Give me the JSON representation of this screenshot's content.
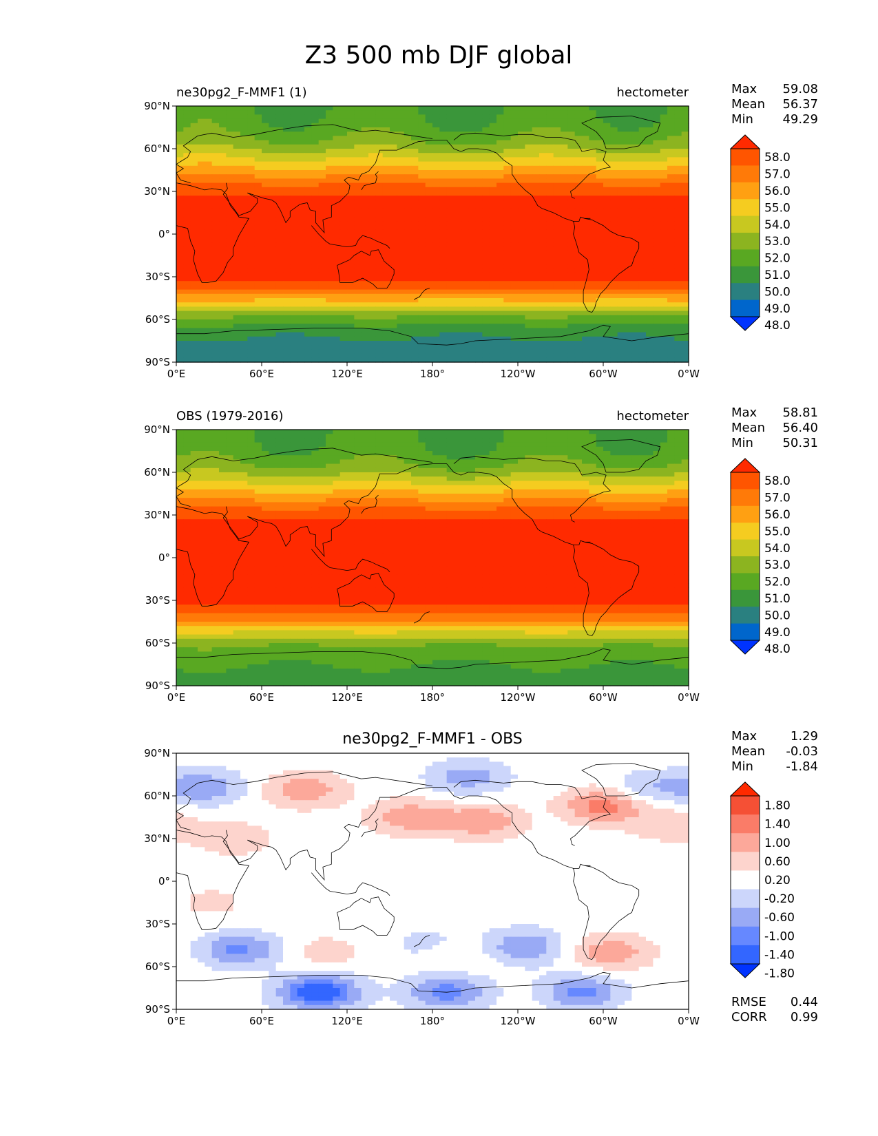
{
  "suptitle": "Z3 500 mb DJF global",
  "colors": {
    "abs_levels": [
      "#0033ff",
      "#0066cc",
      "#2a8080",
      "#3a963a",
      "#59a822",
      "#8cb420",
      "#c8c820",
      "#f5cc20",
      "#ffa012",
      "#ff7a08",
      "#ff5500",
      "#ff2a00"
    ],
    "diff_levels": [
      "#0033ff",
      "#3366ff",
      "#6688ff",
      "#99aaf5",
      "#ccd6fb",
      "#ffffff",
      "#fdd4cd",
      "#fca89a",
      "#fa7c68",
      "#f55035",
      "#ff2a00"
    ],
    "coastline": "#000000"
  },
  "chart_data": [
    {
      "type": "heatmap",
      "title_left": "ne30pg2_F-MMF1 (1)",
      "title_right": "hectometer",
      "stats": {
        "max_label": "Max",
        "max": "59.08",
        "mean_label": "Mean",
        "mean": "56.37",
        "min_label": "Min",
        "min": "49.29"
      },
      "colorbar_ticks": [
        "58.0",
        "57.0",
        "56.0",
        "55.0",
        "54.0",
        "53.0",
        "52.0",
        "51.0",
        "50.0",
        "49.0",
        "48.0"
      ],
      "xticks": [
        "0°E",
        "60°E",
        "120°E",
        "180°",
        "120°W",
        "60°W",
        "0°W"
      ],
      "yticks": [
        "90°N",
        "60°N",
        "30°N",
        "0°",
        "30°S",
        "60°S",
        "90°S"
      ],
      "xlim": [
        0,
        360
      ],
      "ylim": [
        -90,
        90
      ],
      "lat_profile": [
        [
          -90,
          49.3
        ],
        [
          -80,
          49.5
        ],
        [
          -70,
          50.2
        ],
        [
          -62,
          51.2
        ],
        [
          -55,
          52.6
        ],
        [
          -48,
          54.6
        ],
        [
          -42,
          56.3
        ],
        [
          -36,
          57.6
        ],
        [
          -30,
          58.2
        ],
        [
          -20,
          58.6
        ],
        [
          0,
          58.7
        ],
        [
          20,
          58.5
        ],
        [
          28,
          57.9
        ],
        [
          35,
          57.0
        ],
        [
          42,
          55.8
        ],
        [
          50,
          54.5
        ],
        [
          58,
          53.2
        ],
        [
          65,
          52.2
        ],
        [
          75,
          51.4
        ],
        [
          90,
          51.0
        ]
      ],
      "wave": [
        {
          "k": 1,
          "phase": 0,
          "amp": 0.2
        },
        {
          "k": 3,
          "phase": 0,
          "amp": 1.2
        }
      ]
    },
    {
      "type": "heatmap",
      "title_left": "OBS (1979-2016)",
      "title_right": "hectometer",
      "stats": {
        "max_label": "Max",
        "max": "58.81",
        "mean_label": "Mean",
        "mean": "56.40",
        "min_label": "Min",
        "min": "50.31"
      },
      "colorbar_ticks": [
        "58.0",
        "57.0",
        "56.0",
        "55.0",
        "54.0",
        "53.0",
        "52.0",
        "51.0",
        "50.0",
        "49.0",
        "48.0"
      ],
      "xticks": [
        "0°E",
        "60°E",
        "120°E",
        "180°",
        "120°W",
        "60°W",
        "0°W"
      ],
      "yticks": [
        "90°N",
        "60°N",
        "30°N",
        "0°",
        "30°S",
        "60°S",
        "90°S"
      ],
      "xlim": [
        0,
        360
      ],
      "ylim": [
        -90,
        90
      ],
      "lat_profile": [
        [
          -90,
          50.4
        ],
        [
          -80,
          50.8
        ],
        [
          -70,
          51.3
        ],
        [
          -62,
          52.0
        ],
        [
          -55,
          53.3
        ],
        [
          -48,
          55.0
        ],
        [
          -42,
          56.5
        ],
        [
          -36,
          57.7
        ],
        [
          -30,
          58.2
        ],
        [
          -20,
          58.6
        ],
        [
          0,
          58.7
        ],
        [
          20,
          58.5
        ],
        [
          28,
          57.9
        ],
        [
          35,
          57.0
        ],
        [
          42,
          55.8
        ],
        [
          50,
          54.4
        ],
        [
          58,
          53.0
        ],
        [
          65,
          52.0
        ],
        [
          75,
          51.3
        ],
        [
          90,
          51.0
        ]
      ],
      "wave": [
        {
          "k": 1,
          "phase": 0,
          "amp": 0.2
        },
        {
          "k": 3,
          "phase": 0,
          "amp": 1.2
        }
      ]
    },
    {
      "type": "heatmap",
      "title": "ne30pg2_F-MMF1 - OBS",
      "stats": {
        "max_label": "Max",
        "max": "1.29",
        "mean_label": "Mean",
        "mean": "-0.03",
        "min_label": "Min",
        "min": "-1.84"
      },
      "extra_stats": {
        "rmse_label": "RMSE",
        "rmse": "0.44",
        "corr_label": "CORR",
        "corr": "0.99"
      },
      "colorbar_ticks": [
        "1.80",
        "1.40",
        "1.00",
        "0.60",
        "0.20",
        "-0.20",
        "-0.60",
        "-1.00",
        "-1.40",
        "-1.80"
      ],
      "xticks": [
        "0°E",
        "60°E",
        "120°E",
        "180°",
        "120°W",
        "60°W",
        "0°W"
      ],
      "yticks": [
        "90°N",
        "60°N",
        "30°N",
        "0°",
        "30°S",
        "60°S",
        "90°S"
      ],
      "xlim": [
        0,
        360
      ],
      "ylim": [
        -90,
        90
      ],
      "blobs": [
        {
          "lon": 90,
          "lat": 64,
          "value": 0.9
        },
        {
          "lon": 165,
          "lat": 45,
          "value": 0.9
        },
        {
          "lon": 215,
          "lat": 42,
          "value": 0.9
        },
        {
          "lon": 300,
          "lat": 53,
          "value": 1.2
        },
        {
          "lon": 345,
          "lat": 40,
          "value": 0.5
        },
        {
          "lon": 40,
          "lat": 30,
          "value": 0.5
        },
        {
          "lon": 20,
          "lat": 66,
          "value": -0.9
        },
        {
          "lon": 205,
          "lat": 73,
          "value": -0.8
        },
        {
          "lon": 335,
          "lat": 66,
          "value": -0.6
        },
        {
          "lon": 180,
          "lat": -45,
          "value": -0.5
        },
        {
          "lon": 245,
          "lat": -46,
          "value": -1.0
        },
        {
          "lon": 45,
          "lat": -48,
          "value": -1.1
        },
        {
          "lon": 100,
          "lat": -78,
          "value": -1.8
        },
        {
          "lon": 190,
          "lat": -78,
          "value": -1.2
        },
        {
          "lon": 285,
          "lat": -78,
          "value": -1.1
        },
        {
          "lon": 305,
          "lat": -50,
          "value": 0.9
        },
        {
          "lon": 195,
          "lat": -50,
          "value": 0.4
        },
        {
          "lon": 105,
          "lat": -50,
          "value": 0.4
        },
        {
          "lon": 25,
          "lat": -15,
          "value": 0.3
        }
      ]
    }
  ]
}
